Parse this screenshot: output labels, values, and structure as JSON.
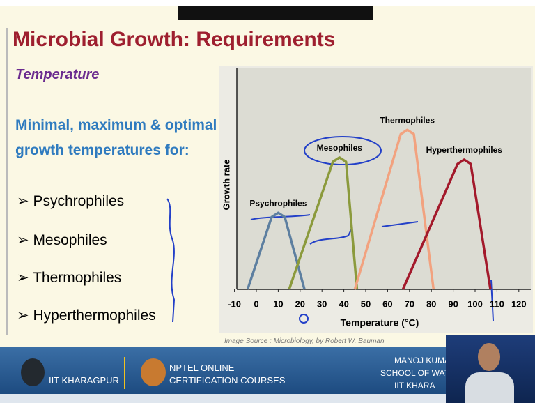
{
  "slide": {
    "title": "Microbial Growth: Requirements",
    "subtitle": "Temperature",
    "intro": [
      "Minimal, maximum & optimal",
      "growth temperatures for:"
    ],
    "items": [
      "Psychrophiles",
      "Mesophiles",
      "Thermophiles",
      "Hyperthermophiles"
    ],
    "image_source": "Image Source : Microbiology, by Robert W. Bauman",
    "footer": {
      "institute": "IIT KHARAGPUR",
      "course": [
        "NPTEL ONLINE",
        "CERTIFICATION COURSES"
      ],
      "presenter": [
        "MANOJ KUMA",
        "SCHOOL OF WATE",
        "IIT KHARA"
      ]
    }
  },
  "chart_data": {
    "type": "line",
    "x_label": "Temperature (°C)",
    "y_label": "Growth rate",
    "xlim": [
      -10,
      120
    ],
    "xticks": [
      -10,
      0,
      10,
      20,
      30,
      40,
      50,
      60,
      70,
      80,
      90,
      100,
      110,
      120
    ],
    "ylim": [
      0,
      100
    ],
    "series": [
      {
        "name": "Psychrophiles",
        "color": "#5d7fa0",
        "x": [
          -4,
          7,
          10,
          13,
          22
        ],
        "values": [
          0,
          34,
          36,
          34,
          0
        ]
      },
      {
        "name": "Mesophiles",
        "color": "#8b9a3c",
        "x": [
          15,
          35,
          38,
          41,
          46
        ],
        "values": [
          0,
          60,
          62,
          60,
          0
        ]
      },
      {
        "name": "Thermophiles",
        "color": "#f2a27f",
        "x": [
          45,
          66,
          69,
          72,
          81
        ],
        "values": [
          0,
          73,
          75,
          73,
          0
        ]
      },
      {
        "name": "Hyperthermophiles",
        "color": "#a3192b",
        "x": [
          67,
          92,
          95,
          98,
          107
        ],
        "values": [
          0,
          59,
          61,
          59,
          0
        ]
      }
    ]
  }
}
